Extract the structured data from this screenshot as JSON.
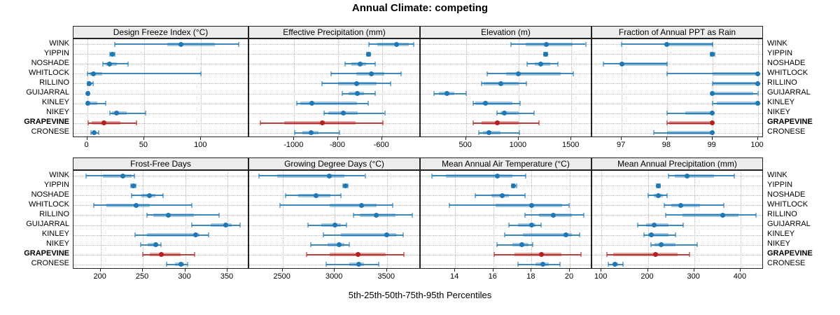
{
  "title": "Annual Climate: competing",
  "caption": "5th-25th-50th-75th-95th Percentiles",
  "sites": [
    "WINK",
    "YIPPIN",
    "NOSHADE",
    "WHITLOCK",
    "RILLINO",
    "GUIJARRAL",
    "KINLEY",
    "NIKEY",
    "GRAPEVINE",
    "CRONESE"
  ],
  "highlight_site": "GRAPEVINE",
  "colors": {
    "normal": "#1f77b4",
    "highlight": "#b22222",
    "strip_bg": "#ececec",
    "grid": "#b9b9b9",
    "border": "#222222"
  },
  "panel_grid": {
    "rows": 2,
    "cols": 4
  },
  "chart_data": [
    {
      "type": "scatter",
      "subtype": "percentile-intervals",
      "title": "Design Freeze Index (°C)",
      "row": 0,
      "col": 0,
      "xlim": [
        -12,
        141
      ],
      "ticks": [
        0,
        50,
        100
      ],
      "grid": "dotted",
      "series": [
        {
          "site": "WINK",
          "p5": 24,
          "p25": 70,
          "p50": 82,
          "p75": 112,
          "p95": 133
        },
        {
          "site": "YIPPIN",
          "p5": 20,
          "p25": 21.5,
          "p50": 22,
          "p75": 23,
          "p95": 24.5
        },
        {
          "site": "NOSHADE",
          "p5": 13.5,
          "p25": 16,
          "p50": 19.5,
          "p75": 26,
          "p95": 36
        },
        {
          "site": "WHITLOCK",
          "p5": 0.3,
          "p25": 2,
          "p50": 5.5,
          "p75": 13,
          "p95": 100
        },
        {
          "site": "RILLINO",
          "p5": 0.2,
          "p25": 1,
          "p50": 2,
          "p75": 3.5,
          "p95": 5
        },
        {
          "site": "GUIJARRAL",
          "p5": 0,
          "p25": 0.1,
          "p50": 0.3,
          "p75": 0.6,
          "p95": 1.2
        },
        {
          "site": "KINLEY",
          "p5": 0,
          "p25": 0.2,
          "p50": 0.5,
          "p75": 9,
          "p95": 16.5
        },
        {
          "site": "NIKEY",
          "p5": 20,
          "p25": 22,
          "p50": 26,
          "p75": 35,
          "p95": 51
        },
        {
          "site": "GRAPEVINE",
          "p5": 1,
          "p25": 4,
          "p50": 15,
          "p75": 29,
          "p95": 43
        },
        {
          "site": "CRONESE",
          "p5": 3.5,
          "p25": 5,
          "p50": 6,
          "p75": 7.5,
          "p95": 10
        }
      ]
    },
    {
      "type": "scatter",
      "subtype": "percentile-intervals",
      "title": "Effective Precipitation (mm)",
      "row": 0,
      "col": 1,
      "xlim": [
        -1205,
        -430
      ],
      "ticks": [
        -1000,
        -800,
        -600
      ],
      "grid": "dotted",
      "series": [
        {
          "site": "WINK",
          "p5": -660,
          "p25": -620,
          "p50": -535,
          "p75": -478,
          "p95": -455
        },
        {
          "site": "YIPPIN",
          "p5": -668,
          "p25": -664,
          "p50": -661,
          "p75": -658,
          "p95": -655
        },
        {
          "site": "NOSHADE",
          "p5": -768,
          "p25": -738,
          "p50": -700,
          "p75": -672,
          "p95": -630
        },
        {
          "site": "WHITLOCK",
          "p5": -832,
          "p25": -718,
          "p50": -648,
          "p75": -588,
          "p95": -514
        },
        {
          "site": "RILLINO",
          "p5": -873,
          "p25": -800,
          "p50": -715,
          "p75": -625,
          "p95": -560
        },
        {
          "site": "GUIJARRAL",
          "p5": -780,
          "p25": -752,
          "p50": -713,
          "p75": -682,
          "p95": -632
        },
        {
          "site": "KINLEY",
          "p5": -987,
          "p25": -972,
          "p50": -920,
          "p75": -715,
          "p95": -663
        },
        {
          "site": "NIKEY",
          "p5": -863,
          "p25": -845,
          "p50": -775,
          "p75": -712,
          "p95": -588
        },
        {
          "site": "GRAPEVINE",
          "p5": -1155,
          "p25": -1045,
          "p50": -873,
          "p75": -719,
          "p95": -597
        },
        {
          "site": "CRONESE",
          "p5": -997,
          "p25": -962,
          "p50": -924,
          "p75": -890,
          "p95": -794
        }
      ]
    },
    {
      "type": "scatter",
      "subtype": "percentile-intervals",
      "title": "Elevation (m)",
      "row": 0,
      "col": 2,
      "xlim": [
        70,
        1685
      ],
      "ticks": [
        500,
        1000,
        1500
      ],
      "grid": "dotted",
      "series": [
        {
          "site": "WINK",
          "p5": 925,
          "p25": 1065,
          "p50": 1260,
          "p75": 1510,
          "p95": 1635
        },
        {
          "site": "YIPPIN",
          "p5": 1238,
          "p25": 1247,
          "p50": 1255,
          "p75": 1263,
          "p95": 1272
        },
        {
          "site": "NOSHADE",
          "p5": 1080,
          "p25": 1150,
          "p50": 1210,
          "p75": 1300,
          "p95": 1375
        },
        {
          "site": "WHITLOCK",
          "p5": 700,
          "p25": 880,
          "p50": 995,
          "p75": 1400,
          "p95": 1520
        },
        {
          "site": "RILLINO",
          "p5": 645,
          "p25": 665,
          "p50": 830,
          "p75": 1000,
          "p95": 1072
        },
        {
          "site": "GUIJARRAL",
          "p5": 197,
          "p25": 240,
          "p50": 316,
          "p75": 390,
          "p95": 500
        },
        {
          "site": "KINLEY",
          "p5": 566,
          "p25": 590,
          "p50": 685,
          "p75": 940,
          "p95": 1013
        },
        {
          "site": "NIKEY",
          "p5": 795,
          "p25": 830,
          "p50": 862,
          "p75": 1000,
          "p95": 1145
        },
        {
          "site": "GRAPEVINE",
          "p5": 566,
          "p25": 650,
          "p50": 796,
          "p75": 1000,
          "p95": 1191
        },
        {
          "site": "CRONESE",
          "p5": 618,
          "p25": 660,
          "p50": 717,
          "p75": 830,
          "p95": 1007
        }
      ]
    },
    {
      "type": "scatter",
      "subtype": "percentile-intervals",
      "title": "Fraction of Annual PPT as Rain",
      "row": 0,
      "col": 3,
      "xlim": [
        96.35,
        100.1
      ],
      "ticks": [
        97,
        98,
        99,
        100
      ],
      "grid": "dotted",
      "series": [
        {
          "site": "WINK",
          "p5": 97,
          "p25": 98,
          "p50": 98,
          "p75": 99,
          "p95": 99
        },
        {
          "site": "YIPPIN",
          "p5": 98.95,
          "p25": 98.98,
          "p50": 99,
          "p75": 99.02,
          "p95": 99.05
        },
        {
          "site": "NOSHADE",
          "p5": 96.6,
          "p25": 97,
          "p50": 97,
          "p75": 98,
          "p95": 98
        },
        {
          "site": "WHITLOCK",
          "p5": 98,
          "p25": 99,
          "p50": 100,
          "p75": 100,
          "p95": 100
        },
        {
          "site": "RILLINO",
          "p5": 99,
          "p25": 99,
          "p50": 100,
          "p75": 100,
          "p95": 100
        },
        {
          "site": "GUIJARRAL",
          "p5": 99,
          "p25": 99,
          "p50": 99,
          "p75": 99.9,
          "p95": 100
        },
        {
          "site": "KINLEY",
          "p5": 99,
          "p25": 99.1,
          "p50": 100,
          "p75": 100,
          "p95": 100
        },
        {
          "site": "NIKEY",
          "p5": 98,
          "p25": 98.4,
          "p50": 99,
          "p75": 99,
          "p95": 99
        },
        {
          "site": "GRAPEVINE",
          "p5": 98,
          "p25": 98.05,
          "p50": 99,
          "p75": 99,
          "p95": 99
        },
        {
          "site": "CRONESE",
          "p5": 97.7,
          "p25": 98,
          "p50": 99,
          "p75": 99,
          "p95": 99
        }
      ]
    },
    {
      "type": "scatter",
      "subtype": "percentile-intervals",
      "title": "Frost-Free Days",
      "row": 1,
      "col": 0,
      "xlim": [
        168,
        374
      ],
      "ticks": [
        200,
        250,
        300,
        350
      ],
      "grid": "dotted",
      "series": [
        {
          "site": "WINK",
          "p5": 183,
          "p25": 203,
          "p50": 226,
          "p75": 237,
          "p95": 240
        },
        {
          "site": "YIPPIN",
          "p5": 236,
          "p25": 238,
          "p50": 239,
          "p75": 240,
          "p95": 242
        },
        {
          "site": "NOSHADE",
          "p5": 237,
          "p25": 248,
          "p50": 258,
          "p75": 265,
          "p95": 274
        },
        {
          "site": "WHITLOCK",
          "p5": 192,
          "p25": 207,
          "p50": 242,
          "p75": 258,
          "p95": 308
        },
        {
          "site": "RILLINO",
          "p5": 255,
          "p25": 262,
          "p50": 280,
          "p75": 310,
          "p95": 340
        },
        {
          "site": "GUIJARRAL",
          "p5": 308,
          "p25": 330,
          "p50": 348,
          "p75": 355,
          "p95": 365
        },
        {
          "site": "KINLEY",
          "p5": 241,
          "p25": 255,
          "p50": 312,
          "p75": 317,
          "p95": 328
        },
        {
          "site": "NIKEY",
          "p5": 247,
          "p25": 256,
          "p50": 265,
          "p75": 268,
          "p95": 271
        },
        {
          "site": "GRAPEVINE",
          "p5": 250,
          "p25": 258,
          "p50": 272,
          "p75": 295,
          "p95": 311
        },
        {
          "site": "CRONESE",
          "p5": 278,
          "p25": 288,
          "p50": 295,
          "p75": 299,
          "p95": 303
        }
      ]
    },
    {
      "type": "scatter",
      "subtype": "percentile-intervals",
      "title": "Growing Degree Days (°C)",
      "row": 1,
      "col": 1,
      "xlim": [
        2180,
        3810
      ],
      "ticks": [
        2500,
        3000,
        3500
      ],
      "grid": "dotted",
      "series": [
        {
          "site": "WINK",
          "p5": 2272,
          "p25": 2450,
          "p50": 2950,
          "p75": 3090,
          "p95": 3290
        },
        {
          "site": "YIPPIN",
          "p5": 3080,
          "p25": 3094,
          "p50": 3103,
          "p75": 3114,
          "p95": 3126
        },
        {
          "site": "NOSHADE",
          "p5": 2530,
          "p25": 2650,
          "p50": 2820,
          "p75": 2960,
          "p95": 3060
        },
        {
          "site": "WHITLOCK",
          "p5": 2473,
          "p25": 2950,
          "p50": 3255,
          "p75": 3400,
          "p95": 3554
        },
        {
          "site": "RILLINO",
          "p5": 3180,
          "p25": 3240,
          "p50": 3395,
          "p75": 3580,
          "p95": 3740
        },
        {
          "site": "GUIJARRAL",
          "p5": 2740,
          "p25": 2870,
          "p50": 3000,
          "p75": 3060,
          "p95": 3113
        },
        {
          "site": "KINLEY",
          "p5": 2890,
          "p25": 3060,
          "p50": 3500,
          "p75": 3590,
          "p95": 3655
        },
        {
          "site": "NIKEY",
          "p5": 2770,
          "p25": 2930,
          "p50": 3040,
          "p75": 3090,
          "p95": 3140
        },
        {
          "site": "GRAPEVINE",
          "p5": 2727,
          "p25": 2950,
          "p50": 3220,
          "p75": 3490,
          "p95": 3660
        },
        {
          "site": "CRONESE",
          "p5": 2920,
          "p25": 3140,
          "p50": 3230,
          "p75": 3280,
          "p95": 3420
        }
      ]
    },
    {
      "type": "scatter",
      "subtype": "percentile-intervals",
      "title": "Mean Annual Air Temperature (°C)",
      "row": 1,
      "col": 2,
      "xlim": [
        12.2,
        21.1
      ],
      "ticks": [
        14,
        16,
        18,
        20
      ],
      "grid": "dotted",
      "series": [
        {
          "site": "WINK",
          "p5": 12.8,
          "p25": 13.5,
          "p50": 16.2,
          "p75": 17.0,
          "p95": 17.7
        },
        {
          "site": "YIPPIN",
          "p5": 16.95,
          "p25": 17.0,
          "p50": 17.05,
          "p75": 17.1,
          "p95": 17.2
        },
        {
          "site": "NOSHADE",
          "p5": 15.05,
          "p25": 15.9,
          "p50": 16.45,
          "p75": 16.8,
          "p95": 17.65
        },
        {
          "site": "WHITLOCK",
          "p5": 13.7,
          "p25": 16.1,
          "p50": 18.0,
          "p75": 19.6,
          "p95": 19.95
        },
        {
          "site": "RILLINO",
          "p5": 17.65,
          "p25": 18.4,
          "p50": 19.15,
          "p75": 20.1,
          "p95": 20.75
        },
        {
          "site": "GUIJARRAL",
          "p5": 16.8,
          "p25": 17.3,
          "p50": 18.0,
          "p75": 18.2,
          "p95": 18.5
        },
        {
          "site": "KINLEY",
          "p5": 16.6,
          "p25": 17.55,
          "p50": 19.8,
          "p75": 20.1,
          "p95": 20.5
        },
        {
          "site": "NIKEY",
          "p5": 16.2,
          "p25": 17.0,
          "p50": 17.5,
          "p75": 17.85,
          "p95": 18.05
        },
        {
          "site": "GRAPEVINE",
          "p5": 16.05,
          "p25": 17.1,
          "p50": 18.5,
          "p75": 19.55,
          "p95": 20.6
        },
        {
          "site": "CRONESE",
          "p5": 17.3,
          "p25": 18.2,
          "p50": 18.6,
          "p75": 18.9,
          "p95": 19.5
        }
      ]
    },
    {
      "type": "scatter",
      "subtype": "percentile-intervals",
      "title": "Mean Annual Precipitation (mm)",
      "row": 1,
      "col": 3,
      "xlim": [
        80,
        447
      ],
      "ticks": [
        100,
        200,
        300,
        400
      ],
      "grid": "dotted",
      "series": [
        {
          "site": "WINK",
          "p5": 245,
          "p25": 258,
          "p50": 284,
          "p75": 343,
          "p95": 386
        },
        {
          "site": "YIPPIN",
          "p5": 219,
          "p25": 221,
          "p50": 223,
          "p75": 225,
          "p95": 227
        },
        {
          "site": "NOSHADE",
          "p5": 200,
          "p25": 213,
          "p50": 222,
          "p75": 233,
          "p95": 241
        },
        {
          "site": "WHITLOCK",
          "p5": 236,
          "p25": 250,
          "p50": 271,
          "p75": 313,
          "p95": 364
        },
        {
          "site": "RILLINO",
          "p5": 238,
          "p25": 275,
          "p50": 361,
          "p75": 395,
          "p95": 433
        },
        {
          "site": "GUIJARRAL",
          "p5": 178,
          "p25": 196,
          "p50": 214,
          "p75": 245,
          "p95": 276
        },
        {
          "site": "KINLEY",
          "p5": 191,
          "p25": 200,
          "p50": 208,
          "p75": 245,
          "p95": 260
        },
        {
          "site": "NIKEY",
          "p5": 207,
          "p25": 215,
          "p50": 229,
          "p75": 260,
          "p95": 306
        },
        {
          "site": "GRAPEVINE",
          "p5": 112,
          "p25": 125,
          "p50": 216,
          "p75": 265,
          "p95": 290
        },
        {
          "site": "CRONESE",
          "p5": 115,
          "p25": 123,
          "p50": 129,
          "p75": 136,
          "p95": 146
        }
      ]
    }
  ]
}
